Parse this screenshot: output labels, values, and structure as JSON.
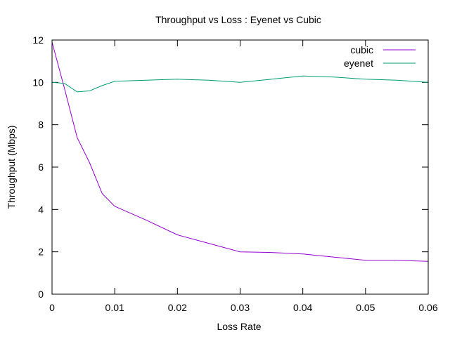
{
  "chart_data": {
    "type": "line",
    "title": "Throughput vs Loss : Eyenet vs Cubic",
    "xlabel": "Loss Rate",
    "ylabel": "Throughput (Mbps)",
    "xlim": [
      0,
      0.06
    ],
    "ylim": [
      0,
      12
    ],
    "xticks": [
      0,
      0.01,
      0.02,
      0.03,
      0.04,
      0.05,
      0.06
    ],
    "xtick_labels": [
      "0",
      "0.01",
      "0.02",
      "0.03",
      "0.04",
      "0.05",
      "0.06"
    ],
    "yticks": [
      0,
      2,
      4,
      6,
      8,
      10,
      12
    ],
    "ytick_labels": [
      "0",
      "2",
      "4",
      "6",
      "8",
      "10",
      "12"
    ],
    "grid": false,
    "legend_position": "top-right",
    "series": [
      {
        "name": "cubic",
        "color": "#9400d3",
        "x": [
          0,
          0.002,
          0.004,
          0.006,
          0.008,
          0.01,
          0.015,
          0.02,
          0.025,
          0.03,
          0.035,
          0.04,
          0.045,
          0.05,
          0.055,
          0.06
        ],
        "y": [
          11.9,
          9.7,
          7.4,
          6.2,
          4.75,
          4.15,
          3.5,
          2.8,
          2.4,
          2.0,
          1.97,
          1.9,
          1.75,
          1.6,
          1.6,
          1.55
        ]
      },
      {
        "name": "eyenet",
        "color": "#009e73",
        "x": [
          0,
          0.002,
          0.004,
          0.006,
          0.008,
          0.01,
          0.015,
          0.02,
          0.025,
          0.03,
          0.035,
          0.04,
          0.045,
          0.05,
          0.055,
          0.06
        ],
        "y": [
          10.0,
          9.95,
          9.55,
          9.6,
          9.85,
          10.05,
          10.1,
          10.15,
          10.1,
          10.0,
          10.15,
          10.3,
          10.25,
          10.15,
          10.1,
          10.0
        ]
      }
    ]
  }
}
